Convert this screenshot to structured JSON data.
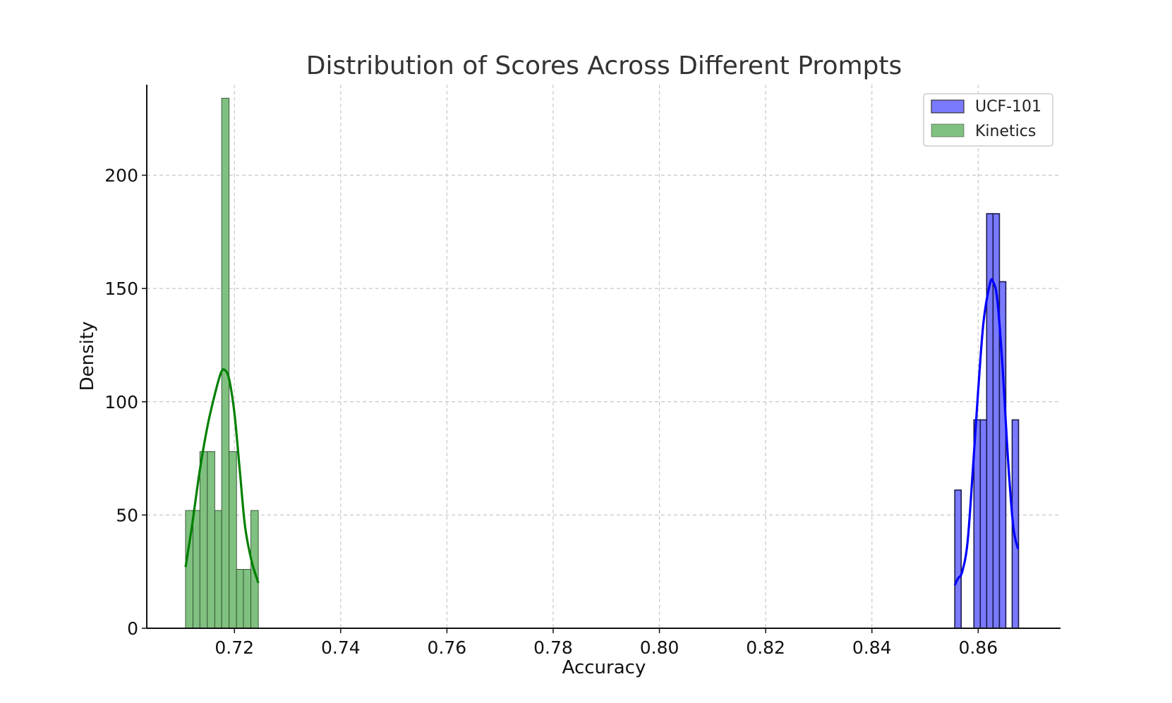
{
  "chart_data": {
    "type": "histogram",
    "title": "Distribution of Scores Across Different Prompts",
    "xlabel": "Accuracy",
    "ylabel": "Density",
    "xlim": [
      0.7035,
      0.8755
    ],
    "ylim": [
      0,
      240
    ],
    "xticks": [
      "0.72",
      "0.74",
      "0.76",
      "0.78",
      "0.80",
      "0.82",
      "0.84",
      "0.86"
    ],
    "yticks": [
      "0",
      "50",
      "100",
      "150",
      "200"
    ],
    "grid": true,
    "legend_position": "top-right",
    "series": [
      {
        "name": "UCF-101",
        "fill": "#7a7aff",
        "line": "#0000ff",
        "bins": [
          {
            "x0": 0.8556,
            "x1": 0.8568,
            "y": 61
          },
          {
            "x0": 0.858,
            "x1": 0.8592,
            "y": 0
          },
          {
            "x0": 0.8592,
            "x1": 0.8604,
            "y": 92
          },
          {
            "x0": 0.8604,
            "x1": 0.8616,
            "y": 92
          },
          {
            "x0": 0.8616,
            "x1": 0.8628,
            "y": 183
          },
          {
            "x0": 0.8628,
            "x1": 0.864,
            "y": 183
          },
          {
            "x0": 0.864,
            "x1": 0.8652,
            "y": 153
          },
          {
            "x0": 0.8664,
            "x1": 0.8676,
            "y": 92
          }
        ],
        "kde": [
          [
            0.8556,
            19
          ],
          [
            0.8562,
            22
          ],
          [
            0.857,
            25
          ],
          [
            0.858,
            38
          ],
          [
            0.859,
            70
          ],
          [
            0.86,
            105
          ],
          [
            0.861,
            135
          ],
          [
            0.8622,
            152
          ],
          [
            0.8628,
            153
          ],
          [
            0.8636,
            145
          ],
          [
            0.8646,
            115
          ],
          [
            0.8656,
            75
          ],
          [
            0.8666,
            45
          ],
          [
            0.8675,
            35
          ]
        ]
      },
      {
        "name": "Kinetics",
        "fill": "#80c080",
        "line": "#008000",
        "bins": [
          {
            "x0": 0.7108,
            "x1": 0.7122,
            "y": 52
          },
          {
            "x0": 0.7122,
            "x1": 0.7135,
            "y": 52
          },
          {
            "x0": 0.7135,
            "x1": 0.7149,
            "y": 78
          },
          {
            "x0": 0.7149,
            "x1": 0.7163,
            "y": 78
          },
          {
            "x0": 0.7163,
            "x1": 0.7176,
            "y": 52
          },
          {
            "x0": 0.7176,
            "x1": 0.719,
            "y": 234
          },
          {
            "x0": 0.719,
            "x1": 0.7204,
            "y": 78
          },
          {
            "x0": 0.7204,
            "x1": 0.7217,
            "y": 26
          },
          {
            "x0": 0.7217,
            "x1": 0.7231,
            "y": 26
          },
          {
            "x0": 0.7231,
            "x1": 0.7245,
            "y": 52
          }
        ],
        "kde": [
          [
            0.7108,
            27
          ],
          [
            0.712,
            45
          ],
          [
            0.7135,
            70
          ],
          [
            0.715,
            90
          ],
          [
            0.7165,
            105
          ],
          [
            0.7175,
            113
          ],
          [
            0.7182,
            114
          ],
          [
            0.719,
            110
          ],
          [
            0.72,
            95
          ],
          [
            0.721,
            70
          ],
          [
            0.722,
            45
          ],
          [
            0.7232,
            30
          ],
          [
            0.7245,
            20
          ]
        ]
      }
    ]
  }
}
